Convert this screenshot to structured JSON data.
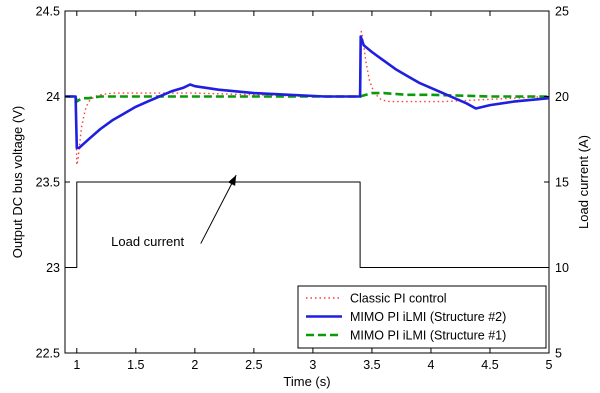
{
  "chart_data": {
    "type": "line",
    "xlabel": "Time (s)",
    "ylabel": "Output DC bus voltage (V)",
    "ylabel_right": "Load current (A)",
    "xlim": [
      0.9,
      5
    ],
    "ylim": [
      22.5,
      24.5
    ],
    "ylim_right": [
      5,
      25
    ],
    "x_ticks": [
      "1",
      "1.5",
      "2",
      "2.5",
      "3",
      "3.5",
      "4",
      "4.5",
      "5"
    ],
    "y_ticks": [
      "22.5",
      "23",
      "23.5",
      "24",
      "24.5"
    ],
    "y_ticks_right": [
      "5",
      "10",
      "15",
      "20",
      "25"
    ],
    "grid": false,
    "legend_position": "bottom-right",
    "annotation": {
      "text": "Load current",
      "arrow_to": [
        2.35,
        23.54
      ]
    },
    "series": [
      {
        "name": "Classic PI control",
        "axis": "left",
        "color": "#ff3b3b",
        "style": "dotted",
        "x": [
          0.9,
          0.99,
          1.0,
          1.01,
          1.02,
          1.04,
          1.07,
          1.1,
          1.15,
          1.2,
          1.3,
          1.5,
          1.8,
          2.0,
          2.5,
          3.0,
          3.4,
          3.41,
          3.42,
          3.45,
          3.48,
          3.52,
          3.58,
          3.65,
          3.75,
          3.9,
          4.1,
          4.4,
          4.7,
          5.0
        ],
        "y": [
          24.0,
          24.0,
          23.6,
          23.63,
          23.7,
          23.82,
          23.92,
          23.97,
          24.0,
          24.01,
          24.02,
          24.02,
          24.02,
          24.02,
          24.01,
          24.0,
          24.0,
          24.38,
          24.35,
          24.2,
          24.09,
          24.02,
          23.98,
          23.97,
          23.97,
          23.97,
          23.97,
          23.98,
          23.99,
          24.0
        ]
      },
      {
        "name": "MIMO PI iLMI (Structure #2)",
        "axis": "left",
        "color": "#1f1fe0",
        "style": "solid",
        "x": [
          0.9,
          0.99,
          1.0,
          1.02,
          1.1,
          1.2,
          1.3,
          1.4,
          1.5,
          1.6,
          1.7,
          1.8,
          1.9,
          1.96,
          2.0,
          2.2,
          2.5,
          2.8,
          3.1,
          3.4,
          3.405,
          3.43,
          3.5,
          3.6,
          3.7,
          3.8,
          3.9,
          4.0,
          4.1,
          4.2,
          4.3,
          4.38,
          4.5,
          4.7,
          5.0
        ],
        "y": [
          24.0,
          24.0,
          23.7,
          23.7,
          23.75,
          23.81,
          23.86,
          23.9,
          23.94,
          23.97,
          24.0,
          24.03,
          24.05,
          24.07,
          24.06,
          24.04,
          24.02,
          24.01,
          24.0,
          24.0,
          24.35,
          24.3,
          24.26,
          24.21,
          24.16,
          24.12,
          24.08,
          24.05,
          24.02,
          23.99,
          23.96,
          23.93,
          23.95,
          23.97,
          23.99
        ]
      },
      {
        "name": "MIMO PI iLMI (Structure #1)",
        "axis": "left",
        "color": "#0a9a0a",
        "style": "dashed",
        "x": [
          0.9,
          0.99,
          1.0,
          1.02,
          1.05,
          1.1,
          1.2,
          1.5,
          2.0,
          2.5,
          3.0,
          3.4,
          3.45,
          3.5,
          3.6,
          3.8,
          4.0,
          4.5,
          5.0
        ],
        "y": [
          24.0,
          24.0,
          23.97,
          23.98,
          23.99,
          23.99,
          24.0,
          24.0,
          24.0,
          24.0,
          24.0,
          24.0,
          24.01,
          24.02,
          24.02,
          24.01,
          24.01,
          24.0,
          24.0
        ]
      },
      {
        "name": "Load current",
        "axis": "right",
        "color": "#000000",
        "style": "solid",
        "x": [
          0.9,
          1.0,
          1.0,
          3.4,
          3.4,
          5.0
        ],
        "y": [
          10,
          10,
          15,
          15,
          10,
          10
        ]
      }
    ]
  }
}
